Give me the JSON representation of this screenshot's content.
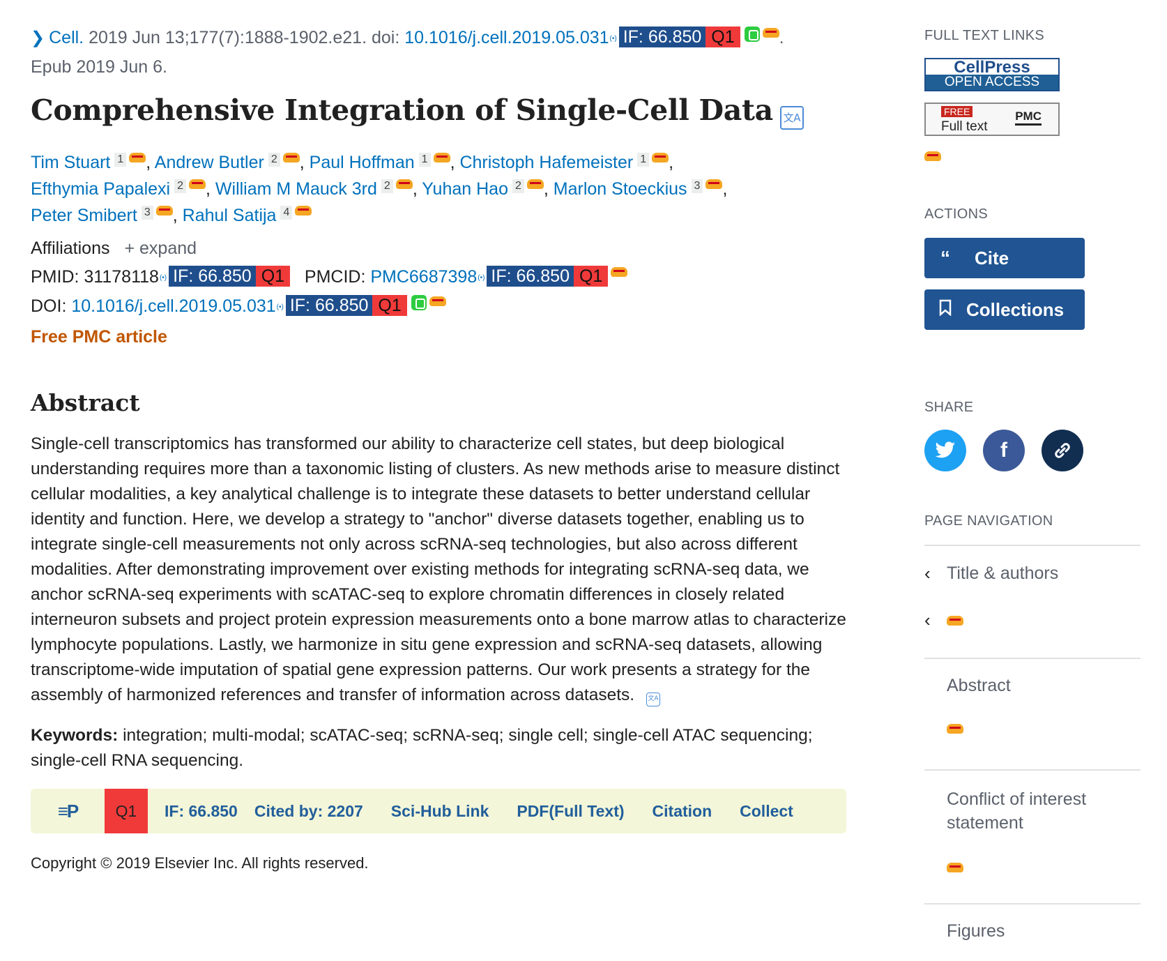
{
  "citation": {
    "journal": "Cell.",
    "details": "2019 Jun 13;177(7):1888-1902.e21. doi:",
    "doi": "10.1016/j.cell.2019.05.031",
    "epub": "Epub 2019 Jun 6."
  },
  "badge": {
    "if_text": "IF: 66.850",
    "quartile": "Q1"
  },
  "title": "Comprehensive Integration of Single-Cell Data",
  "authors": [
    {
      "name": "Tim Stuart",
      "aff": "1"
    },
    {
      "name": "Andrew Butler",
      "aff": "2"
    },
    {
      "name": "Paul Hoffman",
      "aff": "1"
    },
    {
      "name": "Christoph Hafemeister",
      "aff": "1"
    },
    {
      "name": "Efthymia Papalexi",
      "aff": "2"
    },
    {
      "name": "William M Mauck 3rd",
      "aff": "2"
    },
    {
      "name": "Yuhan Hao",
      "aff": "2"
    },
    {
      "name": "Marlon Stoeckius",
      "aff": "3"
    },
    {
      "name": "Peter Smibert",
      "aff": "3"
    },
    {
      "name": "Rahul Satija",
      "aff": "4"
    }
  ],
  "affiliations": {
    "label": "Affiliations",
    "expand": "expand"
  },
  "ids": {
    "pmid_label": "PMID:",
    "pmid": "31178118",
    "pmcid_label": "PMCID:",
    "pmcid": "PMC6687398",
    "doi_label": "DOI:",
    "doi": "10.1016/j.cell.2019.05.031"
  },
  "free_pmc": "Free PMC article",
  "abstract": {
    "heading": "Abstract",
    "text": "Single-cell transcriptomics has transformed our ability to characterize cell states, but deep biological understanding requires more than a taxonomic listing of clusters. As new methods arise to measure distinct cellular modalities, a key analytical challenge is to integrate these datasets to better understand cellular identity and function. Here, we develop a strategy to \"anchor\" diverse datasets together, enabling us to integrate single-cell measurements not only across scRNA-seq technologies, but also across different modalities. After demonstrating improvement over existing methods for integrating scRNA-seq data, we anchor scRNA-seq experiments with scATAC-seq to explore chromatin differences in closely related interneuron subsets and project protein expression measurements onto a bone marrow atlas to characterize lymphocyte populations. Lastly, we harmonize in situ gene expression and scRNA-seq datasets, allowing transcriptome-wide imputation of spatial gene expression patterns. Our work presents a strategy for the assembly of harmonized references and transfer of information across datasets."
  },
  "keywords": {
    "label": "Keywords:",
    "text": "integration; multi-modal; scATAC-seq; scRNA-seq; single cell; single-cell ATAC sequencing; single-cell RNA sequencing."
  },
  "epbar": {
    "logo": "≡P",
    "quartile": "Q1",
    "if_text": "IF: 66.850",
    "cited_by": "Cited by:  2207",
    "scihub": "Sci-Hub Link",
    "pdf": "PDF(Full Text)",
    "citation": "Citation",
    "collect": "Collect"
  },
  "copyright": "Copyright © 2019 Elsevier Inc. All rights reserved.",
  "sidebar": {
    "full_text_links": "FULL TEXT LINKS",
    "cellpress_top": "CellPress",
    "cellpress_bottom": "OPEN ACCESS",
    "pmc_free": "FREE",
    "pmc_fulltext": "Full text",
    "pmc_label": "PMC",
    "actions": "ACTIONS",
    "cite": "Cite",
    "collections": "Collections",
    "share": "SHARE",
    "page_navigation": "PAGE NAVIGATION",
    "nav": [
      "Title & authors",
      "Abstract",
      "Conflict of interest statement",
      "Figures"
    ]
  },
  "colors": {
    "link": "#0071bc",
    "button": "#205493",
    "twitter": "#1da1f2",
    "facebook": "#3b5998",
    "copylink": "#112e51",
    "free": "#c05600"
  }
}
